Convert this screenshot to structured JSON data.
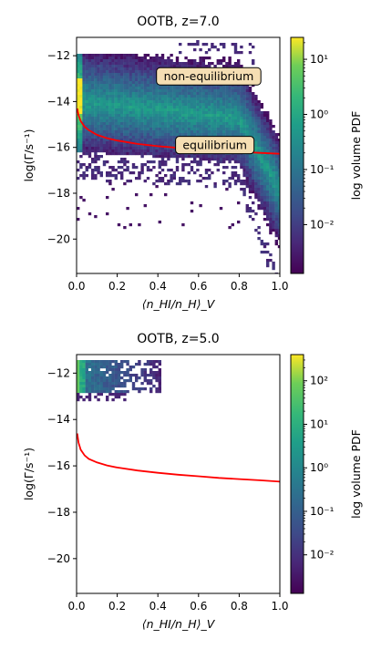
{
  "chart_data": [
    {
      "type": "heatmap",
      "title": "OOTB, z=7.0",
      "xlabel": "⟨n_HI/n_H⟩_V",
      "ylabel": "log(Γ/s⁻¹)",
      "xlim": [
        0.0,
        1.0
      ],
      "ylim": [
        -21.5,
        -11.2
      ],
      "xticks": [
        0.0,
        0.2,
        0.4,
        0.6,
        0.8,
        1.0
      ],
      "xtick_labels": [
        "0.0",
        "0.2",
        "0.4",
        "0.6",
        "0.8",
        "1.0"
      ],
      "yticks": [
        -12,
        -14,
        -16,
        -18,
        -20
      ],
      "ytick_labels": [
        "−12",
        "−14",
        "−16",
        "−18",
        "−20"
      ],
      "colorbar": {
        "label": "log volume PDF",
        "scale": "log",
        "ticks": [
          0.01,
          0.1,
          1,
          10
        ],
        "tick_labels": [
          "10⁻²",
          "10⁻¹",
          "10⁰",
          "10¹"
        ],
        "range": [
          0.0013,
          25
        ]
      },
      "series": [
        {
          "name": "equilibrium",
          "type": "line",
          "color": "#ff0000",
          "x": [
            0.003,
            0.01,
            0.02,
            0.04,
            0.06,
            0.1,
            0.15,
            0.2,
            0.3,
            0.4,
            0.5,
            0.6,
            0.7,
            0.8,
            0.9,
            1.0
          ],
          "y": [
            -14.3,
            -14.6,
            -14.85,
            -15.1,
            -15.25,
            -15.45,
            -15.6,
            -15.7,
            -15.85,
            -15.95,
            -16.02,
            -16.08,
            -16.14,
            -16.19,
            -16.24,
            -16.28
          ]
        }
      ],
      "annotations": [
        {
          "text": "non-equilibrium",
          "x": 0.65,
          "y": -12.9
        },
        {
          "text": "equilibrium",
          "x": 0.68,
          "y": -15.9
        }
      ],
      "colormap": "viridis"
    },
    {
      "type": "heatmap",
      "title": "OOTB, z=5.0",
      "xlabel": "⟨n_HI/n_H⟩_V",
      "ylabel": "log(Γ/s⁻¹)",
      "xlim": [
        0.0,
        1.0
      ],
      "ylim": [
        -21.5,
        -11.2
      ],
      "xticks": [
        0.0,
        0.2,
        0.4,
        0.6,
        0.8,
        1.0
      ],
      "xtick_labels": [
        "0.0",
        "0.2",
        "0.4",
        "0.6",
        "0.8",
        "1.0"
      ],
      "yticks": [
        -12,
        -14,
        -16,
        -18,
        -20
      ],
      "ytick_labels": [
        "−12",
        "−14",
        "−16",
        "−18",
        "−20"
      ],
      "colorbar": {
        "label": "log volume PDF",
        "scale": "log",
        "ticks": [
          0.01,
          0.1,
          1,
          10,
          100
        ],
        "tick_labels": [
          "10⁻²",
          "10⁻¹",
          "10⁰",
          "10¹",
          "10²"
        ],
        "range": [
          0.0013,
          400
        ]
      },
      "series": [
        {
          "type": "line",
          "color": "#ff0000",
          "x": [
            0.003,
            0.01,
            0.02,
            0.04,
            0.06,
            0.1,
            0.15,
            0.2,
            0.3,
            0.4,
            0.5,
            0.6,
            0.7,
            0.8,
            0.9,
            1.0
          ],
          "y": [
            -14.6,
            -15.0,
            -15.3,
            -15.55,
            -15.7,
            -15.85,
            -15.98,
            -16.07,
            -16.2,
            -16.3,
            -16.38,
            -16.45,
            -16.52,
            -16.57,
            -16.62,
            -16.68
          ]
        }
      ],
      "colormap": "viridis"
    }
  ]
}
